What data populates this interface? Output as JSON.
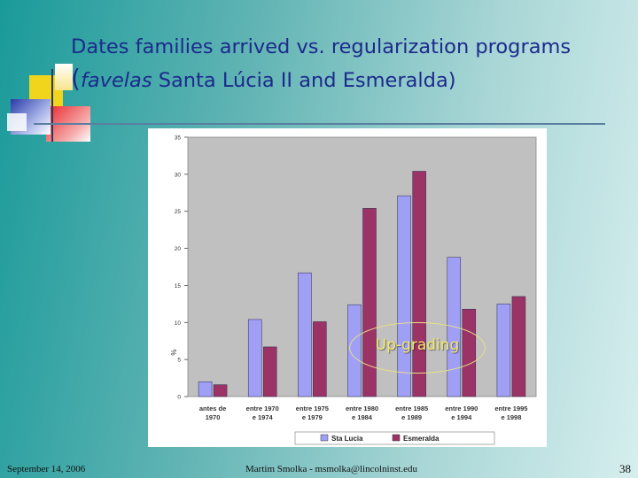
{
  "slide": {
    "title_line1": "Dates families arrived vs. regularization programs",
    "title_paren_open": "(",
    "title_italic": "favelas",
    "title_rest": " Santa Lúcia II and Esmeralda)",
    "annotation": "Up-grading",
    "footer_date": "September 14, 2006",
    "footer_author": "Martim Smolka - msmolka@lincolninst.edu",
    "page_number": "38"
  },
  "colors": {
    "title": "#1c2a8c",
    "series1": "#9f9ff6",
    "series2": "#9b3366",
    "plot_bg": "#c0c0c0",
    "annotation": "#f4e96a"
  },
  "chart_data": {
    "type": "bar",
    "title": "",
    "ylabel": "%",
    "xlabel": "",
    "ylim": [
      0,
      35
    ],
    "yticks": [
      0,
      5,
      10,
      15,
      20,
      25,
      30,
      35
    ],
    "grid": false,
    "legend_position": "bottom",
    "categories": [
      [
        "antes de",
        "1970"
      ],
      [
        "entre 1970",
        "e 1974"
      ],
      [
        "entre 1975",
        "e 1979"
      ],
      [
        "entre 1980",
        "e 1984"
      ],
      [
        "entre 1985",
        "e 1989"
      ],
      [
        "entre 1990",
        "e 1994"
      ],
      [
        "entre 1995",
        "e 1998"
      ]
    ],
    "series": [
      {
        "name": "Sta Lucia",
        "values": [
          2.0,
          10.4,
          16.7,
          12.4,
          27.1,
          18.8,
          12.5
        ]
      },
      {
        "name": "Esmeralda",
        "values": [
          1.6,
          6.7,
          10.1,
          25.4,
          30.4,
          11.8,
          13.5
        ]
      }
    ]
  }
}
